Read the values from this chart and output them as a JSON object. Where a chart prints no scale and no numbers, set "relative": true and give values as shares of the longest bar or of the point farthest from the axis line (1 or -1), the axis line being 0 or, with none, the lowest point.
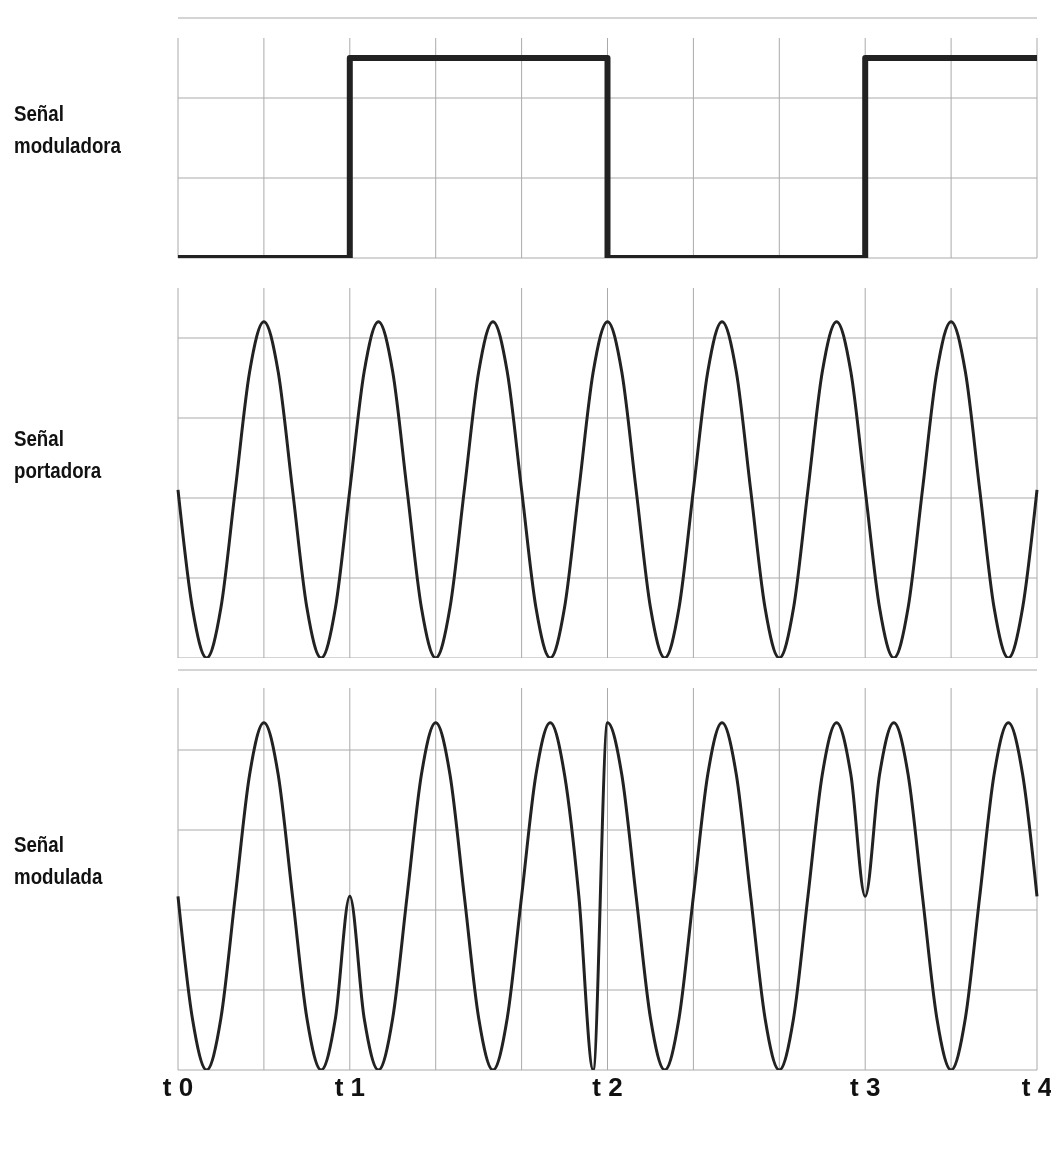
{
  "chart_data": [
    {
      "type": "step",
      "ylabel": "Señal moduladora",
      "relative": true,
      "grid": true,
      "tick_labels": false,
      "color": "#222222",
      "categories": [
        null,
        null,
        null,
        null,
        null,
        null,
        null,
        null,
        null,
        null,
        null,
        null,
        null,
        null,
        null,
        null,
        null,
        null,
        null,
        null,
        null,
        null,
        null,
        null,
        null,
        null,
        null,
        null,
        null,
        null,
        null,
        null,
        null,
        null,
        null,
        null,
        null,
        null,
        null,
        null,
        null,
        null,
        null,
        null,
        null,
        null,
        null,
        null,
        null,
        null,
        null,
        null,
        null,
        null,
        null,
        null,
        null,
        null,
        null,
        null,
        null
      ],
      "values": [
        0,
        0,
        0,
        0,
        0,
        0,
        0,
        0,
        0,
        0,
        0,
        0,
        1,
        1,
        1,
        1,
        1,
        1,
        1,
        1,
        1,
        1,
        1,
        1,
        1,
        1,
        1,
        1,
        1,
        1,
        0,
        0,
        0,
        0,
        0,
        0,
        0,
        0,
        0,
        0,
        0,
        0,
        0,
        0,
        0,
        0,
        0,
        0,
        1,
        1,
        1,
        1,
        1,
        1,
        1,
        1,
        1,
        1,
        1,
        1,
        1
      ]
    },
    {
      "type": "line",
      "ylabel": "Señal portadora",
      "relative": true,
      "grid": true,
      "tick_labels": false,
      "color": "#222222",
      "categories": [
        null,
        null,
        null,
        null,
        null,
        null,
        null,
        null,
        null,
        null,
        null,
        null,
        null,
        null,
        null,
        null,
        null,
        null,
        null,
        null,
        null,
        null,
        null,
        null,
        null,
        null,
        null,
        null,
        null,
        null,
        null,
        null,
        null,
        null,
        null,
        null,
        null,
        null,
        null,
        null,
        null,
        null,
        null,
        null,
        null,
        null,
        null,
        null,
        null,
        null,
        null,
        null,
        null,
        null,
        null,
        null,
        null,
        null,
        null,
        null,
        null
      ],
      "values": [
        0.5,
        0.15,
        0,
        0.15,
        0.5,
        0.85,
        1,
        0.85,
        0.5,
        0.15,
        0,
        0.15,
        0.5,
        0.85,
        1,
        0.85,
        0.5,
        0.15,
        0,
        0.15,
        0.5,
        0.85,
        1,
        0.85,
        0.5,
        0.15,
        0,
        0.15,
        0.5,
        0.85,
        1,
        0.85,
        0.5,
        0.15,
        0,
        0.15,
        0.5,
        0.85,
        1,
        0.85,
        0.5,
        0.15,
        0,
        0.15,
        0.5,
        0.85,
        1,
        0.85,
        0.5,
        0.15,
        0,
        0.15,
        0.5,
        0.85,
        1,
        0.85,
        0.5,
        0.15,
        0,
        0.15,
        0.5
      ]
    },
    {
      "type": "line",
      "ylabel": "Señal modulada",
      "relative": true,
      "grid": true,
      "tick_labels": "x",
      "color": "#222222",
      "categories": [
        "t 0",
        null,
        null,
        null,
        null,
        null,
        null,
        null,
        null,
        null,
        null,
        null,
        "t 1",
        null,
        null,
        null,
        null,
        null,
        null,
        null,
        null,
        null,
        null,
        null,
        null,
        null,
        null,
        null,
        null,
        null,
        "t 2",
        null,
        null,
        null,
        null,
        null,
        null,
        null,
        null,
        null,
        null,
        null,
        null,
        null,
        null,
        null,
        null,
        null,
        "t 3",
        null,
        null,
        null,
        null,
        null,
        null,
        null,
        null,
        null,
        null,
        null,
        "t 4"
      ],
      "values": [
        0.5,
        0.15,
        0,
        0.15,
        0.5,
        0.85,
        1,
        0.85,
        0.5,
        0.15,
        0,
        0.15,
        0.5,
        0.15,
        0,
        0.15,
        0.5,
        0.85,
        1,
        0.85,
        0.5,
        0.15,
        0,
        0.15,
        0.5,
        0.85,
        1,
        0.85,
        0.5,
        0,
        1,
        0.85,
        0.5,
        0.15,
        0,
        0.15,
        0.5,
        0.85,
        1,
        0.85,
        0.5,
        0.15,
        0,
        0.15,
        0.5,
        0.85,
        1,
        0.85,
        0.5,
        0.85,
        1,
        0.85,
        0.5,
        0.15,
        0,
        0.15,
        0.5,
        0.85,
        1,
        0.85,
        0.5
      ]
    }
  ]
}
